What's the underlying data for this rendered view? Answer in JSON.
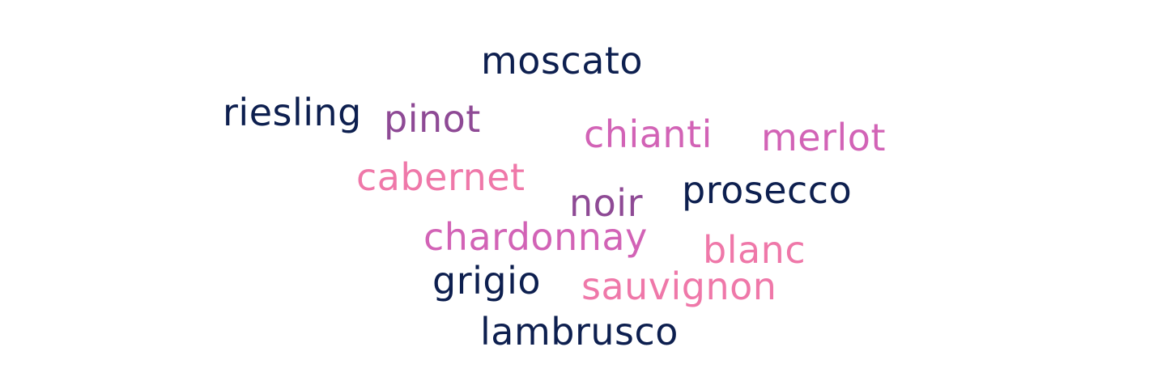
{
  "colors": {
    "navy": "#0d1f4f",
    "purple": "#8e4a95",
    "magenta": "#d263b6",
    "pink": "#ef78a9"
  },
  "words": [
    {
      "text": "moscato",
      "color": "navy"
    },
    {
      "text": "riesling",
      "color": "navy"
    },
    {
      "text": "pinot",
      "color": "purple"
    },
    {
      "text": "chianti",
      "color": "magenta"
    },
    {
      "text": "merlot",
      "color": "magenta"
    },
    {
      "text": "cabernet",
      "color": "pink"
    },
    {
      "text": "noir",
      "color": "purple"
    },
    {
      "text": "prosecco",
      "color": "navy"
    },
    {
      "text": "chardonnay",
      "color": "magenta"
    },
    {
      "text": "blanc",
      "color": "pink"
    },
    {
      "text": "grigio",
      "color": "navy"
    },
    {
      "text": "sauvignon",
      "color": "pink"
    },
    {
      "text": "lambrusco",
      "color": "navy"
    }
  ]
}
